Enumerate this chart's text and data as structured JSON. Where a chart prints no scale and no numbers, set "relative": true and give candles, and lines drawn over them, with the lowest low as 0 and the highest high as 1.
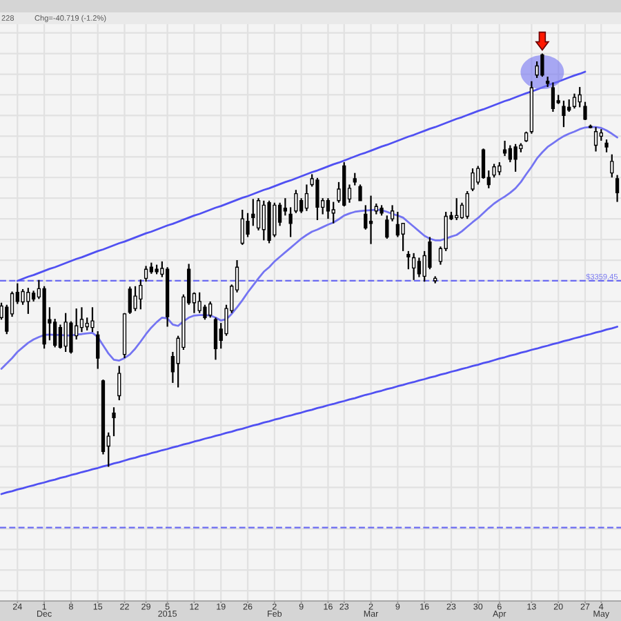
{
  "chart_data": {
    "type": "candlestick",
    "relative": true,
    "color": "#000000",
    "grid": true,
    "annotations": [
      "228",
      "Chg=-40.719 (-1.2%)",
      {
        "text": "$3359.45",
        "y": 0.45
      }
    ],
    "categories": [
      null,
      null,
      null,
      "24",
      null,
      null,
      null,
      null,
      "1\nDec",
      null,
      null,
      null,
      null,
      "8",
      null,
      null,
      null,
      null,
      "15",
      null,
      null,
      null,
      null,
      "22",
      null,
      null,
      null,
      "29",
      null,
      null,
      null,
      "5\n2015",
      null,
      null,
      null,
      null,
      "12",
      null,
      null,
      null,
      null,
      "19",
      null,
      null,
      null,
      null,
      "26",
      null,
      null,
      null,
      null,
      "2\nFeb",
      null,
      null,
      null,
      null,
      "9",
      null,
      null,
      null,
      null,
      "16",
      null,
      null,
      "23",
      null,
      null,
      null,
      null,
      "2\nMar",
      null,
      null,
      null,
      null,
      "9",
      null,
      null,
      null,
      null,
      "16",
      null,
      null,
      null,
      null,
      "23",
      null,
      null,
      null,
      null,
      "30",
      null,
      null,
      null,
      "6\nApr",
      null,
      null,
      null,
      null,
      null,
      "13",
      null,
      null,
      null,
      null,
      "20",
      null,
      null,
      null,
      null,
      "27",
      null,
      null,
      "4\nMay",
      null,
      null,
      null
    ],
    "ohlc": [
      [
        0.361,
        0.397,
        0.356,
        0.389
      ],
      [
        0.386,
        0.392,
        0.321,
        0.328
      ],
      [
        0.37,
        0.424,
        0.363,
        0.419
      ],
      [
        0.422,
        0.444,
        0.394,
        0.4
      ],
      [
        0.399,
        0.43,
        0.392,
        0.424
      ],
      [
        0.4,
        0.433,
        0.37,
        0.422
      ],
      [
        0.42,
        0.426,
        0.4,
        0.406
      ],
      [
        0.411,
        0.452,
        0.406,
        0.431
      ],
      [
        0.431,
        0.437,
        0.286,
        0.297
      ],
      [
        0.356,
        0.386,
        0.306,
        0.348
      ],
      [
        0.35,
        0.358,
        0.289,
        0.294
      ],
      [
        0.337,
        0.344,
        0.286,
        0.289
      ],
      [
        0.292,
        0.372,
        0.278,
        0.35
      ],
      [
        0.348,
        0.352,
        0.274,
        0.278
      ],
      [
        0.317,
        0.383,
        0.308,
        0.341
      ],
      [
        0.337,
        0.386,
        0.326,
        0.357
      ],
      [
        0.339,
        0.361,
        0.33,
        0.347
      ],
      [
        0.337,
        0.386,
        0.326,
        0.353
      ],
      [
        0.319,
        0.328,
        0.237,
        0.263
      ],
      [
        0.208,
        0.211,
        0.03,
        0.037
      ],
      [
        0.05,
        0.083,
        0,
        0.074
      ],
      [
        0.13,
        0.144,
        0.074,
        0.119
      ],
      [
        0.172,
        0.244,
        0.161,
        0.226
      ],
      [
        0.272,
        0.372,
        0.263,
        0.37
      ],
      [
        0.43,
        0.436,
        0.37,
        0.374
      ],
      [
        0.383,
        0.437,
        0.377,
        0.413
      ],
      [
        0.406,
        0.453,
        0.381,
        0.439
      ],
      [
        0.456,
        0.486,
        0.448,
        0.478
      ],
      [
        0.483,
        0.494,
        0.467,
        0.472
      ],
      [
        0.478,
        0.489,
        0.466,
        0.472
      ],
      [
        0.466,
        0.497,
        0.459,
        0.48
      ],
      [
        0.478,
        0.483,
        0.339,
        0.363
      ],
      [
        0.267,
        0.278,
        0.203,
        0.23
      ],
      [
        0.25,
        0.317,
        0.192,
        0.311
      ],
      [
        0.289,
        0.417,
        0.283,
        0.411
      ],
      [
        0.478,
        0.491,
        0.392,
        0.397
      ],
      [
        0.397,
        0.422,
        0.372,
        0.419
      ],
      [
        0.378,
        0.422,
        0.372,
        0.4
      ],
      [
        0.386,
        0.392,
        0.356,
        0.361
      ],
      [
        0.367,
        0.4,
        0.361,
        0.394
      ],
      [
        0.356,
        0.361,
        0.259,
        0.286
      ],
      [
        0.333,
        0.348,
        0.286,
        0.306
      ],
      [
        0.322,
        0.392,
        0.317,
        0.383
      ],
      [
        0.378,
        0.441,
        0.372,
        0.437
      ],
      [
        0.428,
        0.5,
        0.422,
        0.483
      ],
      [
        0.541,
        0.622,
        0.537,
        0.6
      ],
      [
        0.594,
        0.614,
        0.556,
        0.563
      ],
      [
        0.611,
        0.648,
        0.583,
        0.603
      ],
      [
        0.578,
        0.65,
        0.572,
        0.644
      ],
      [
        0.574,
        0.644,
        0.548,
        0.633
      ],
      [
        0.639,
        0.644,
        0.541,
        0.548
      ],
      [
        0.561,
        0.639,
        0.556,
        0.633
      ],
      [
        0.633,
        0.639,
        0.583,
        0.592
      ],
      [
        0.626,
        0.65,
        0.608,
        0.619
      ],
      [
        0.611,
        0.628,
        0.556,
        0.589
      ],
      [
        0.619,
        0.67,
        0.614,
        0.661
      ],
      [
        0.644,
        0.65,
        0.614,
        0.619
      ],
      [
        0.626,
        0.683,
        0.619,
        0.661
      ],
      [
        0.683,
        0.708,
        0.678,
        0.697
      ],
      [
        0.694,
        0.699,
        0.597,
        0.628
      ],
      [
        0.628,
        0.65,
        0.611,
        0.644
      ],
      [
        0.644,
        0.65,
        0.6,
        0.619
      ],
      [
        0.614,
        0.641,
        0.589,
        0.622
      ],
      [
        0.644,
        0.689,
        0.639,
        0.672
      ],
      [
        0.728,
        0.737,
        0.63,
        0.633
      ],
      [
        0.648,
        0.683,
        0.639,
        0.674
      ],
      [
        0.697,
        0.711,
        0.681,
        0.689
      ],
      [
        0.678,
        0.683,
        0.644,
        0.644
      ],
      [
        0.611,
        0.633,
        0.574,
        0.578
      ],
      [
        0.594,
        0.656,
        0.539,
        0.589
      ],
      [
        0.619,
        0.637,
        0.611,
        0.63
      ],
      [
        0.626,
        0.633,
        0.608,
        0.614
      ],
      [
        0.597,
        0.608,
        0.552,
        0.556
      ],
      [
        0.6,
        0.633,
        0.594,
        0.619
      ],
      [
        0.586,
        0.617,
        0.556,
        0.561
      ],
      [
        0.563,
        0.589,
        0.522,
        0.589
      ],
      [
        0.514,
        0.522,
        0.478,
        0.508
      ],
      [
        0.481,
        0.517,
        0.452,
        0.506
      ],
      [
        0.497,
        0.506,
        0.459,
        0.467
      ],
      [
        0.461,
        0.522,
        0.448,
        0.511
      ],
      [
        0.544,
        0.556,
        0.478,
        0.483
      ],
      [
        0.45,
        0.461,
        0.444,
        0.456
      ],
      [
        0.497,
        0.533,
        0.489,
        0.528
      ],
      [
        0.528,
        0.617,
        0.522,
        0.606
      ],
      [
        0.608,
        0.617,
        0.597,
        0.6
      ],
      [
        0.603,
        0.65,
        0.597,
        0.608
      ],
      [
        0.603,
        0.639,
        0.6,
        0.633
      ],
      [
        0.606,
        0.667,
        0.6,
        0.661
      ],
      [
        0.672,
        0.722,
        0.667,
        0.711
      ],
      [
        0.689,
        0.728,
        0.683,
        0.722
      ],
      [
        0.767,
        0.77,
        0.697,
        0.7
      ],
      [
        0.7,
        0.717,
        0.674,
        0.683
      ],
      [
        0.706,
        0.733,
        0.7,
        0.726
      ],
      [
        0.714,
        0.737,
        0.706,
        0.728
      ],
      [
        0.767,
        0.789,
        0.752,
        0.759
      ],
      [
        0.77,
        0.778,
        0.737,
        0.744
      ],
      [
        0.774,
        0.781,
        0.714,
        0.744
      ],
      [
        0.77,
        0.783,
        0.761,
        0.778
      ],
      [
        0.789,
        0.811,
        0.786,
        0.808
      ],
      [
        0.811,
        0.933,
        0.806,
        0.917
      ],
      [
        0.948,
        0.981,
        0.941,
        0.97
      ],
      [
        0.997,
        1,
        0.944,
        0.948
      ],
      [
        0.933,
        0.944,
        0.919,
        0.928
      ],
      [
        0.917,
        0.93,
        0.859,
        0.867
      ],
      [
        0.886,
        0.9,
        0.878,
        0.881
      ],
      [
        0.872,
        0.886,
        0.822,
        0.85
      ],
      [
        0.87,
        0.889,
        0.859,
        0.863
      ],
      [
        0.872,
        0.903,
        0.867,
        0.894
      ],
      [
        0.883,
        0.919,
        0.87,
        0.9
      ],
      [
        0.872,
        0.883,
        0.839,
        0.841
      ],
      [
        0.824,
        0.828,
        0.819,
        0.821
      ],
      [
        0.778,
        0.822,
        0.763,
        0.811
      ],
      [
        0.8,
        0.817,
        0.789,
        0.808
      ],
      [
        0.783,
        0.792,
        0.761,
        0.774
      ],
      [
        0.711,
        0.756,
        0.7,
        0.739
      ],
      [
        0.697,
        0.706,
        0.641,
        0.663
      ]
    ],
    "series": [
      {
        "type": "line",
        "color": "#7474f2",
        "values": [
          0.237,
          0.25,
          0.263,
          0.278,
          0.289,
          0.3,
          0.308,
          0.314,
          0.319,
          0.32,
          0.319,
          0.319,
          0.318,
          0.318,
          0.32,
          0.321,
          0.323,
          0.324,
          0.314,
          0.294,
          0.274,
          0.259,
          0.257,
          0.263,
          0.272,
          0.286,
          0.303,
          0.321,
          0.337,
          0.35,
          0.361,
          0.359,
          0.344,
          0.341,
          0.352,
          0.361,
          0.366,
          0.367,
          0.367,
          0.366,
          0.361,
          0.354,
          0.357,
          0.37,
          0.386,
          0.403,
          0.422,
          0.439,
          0.456,
          0.472,
          0.483,
          0.497,
          0.508,
          0.519,
          0.53,
          0.541,
          0.552,
          0.561,
          0.569,
          0.574,
          0.58,
          0.586,
          0.591,
          0.599,
          0.608,
          0.613,
          0.617,
          0.619,
          0.62,
          0.621,
          0.622,
          0.621,
          0.617,
          0.612,
          0.608,
          0.603,
          0.592,
          0.581,
          0.57,
          0.559,
          0.552,
          0.548,
          0.548,
          0.552,
          0.557,
          0.561,
          0.57,
          0.581,
          0.592,
          0.602,
          0.614,
          0.626,
          0.637,
          0.646,
          0.654,
          0.663,
          0.674,
          0.689,
          0.708,
          0.726,
          0.746,
          0.761,
          0.774,
          0.783,
          0.792,
          0.8,
          0.806,
          0.811,
          0.817,
          0.821,
          0.822,
          0.822,
          0.82,
          0.814,
          0.806,
          0.797
        ]
      },
      {
        "type": "line",
        "color": "#5050f2",
        "values": [
          null,
          null,
          null,
          0.45,
          0.455,
          0.46,
          0.464,
          0.469,
          0.474,
          0.479,
          0.483,
          0.488,
          0.493,
          0.498,
          0.503,
          0.507,
          0.512,
          0.517,
          0.522,
          0.526,
          0.531,
          0.536,
          0.541,
          0.545,
          0.55,
          0.555,
          0.56,
          0.565,
          0.569,
          0.574,
          0.579,
          0.584,
          0.588,
          0.593,
          0.598,
          0.603,
          0.608,
          0.612,
          0.617,
          0.622,
          0.627,
          0.631,
          0.636,
          0.641,
          0.646,
          0.651,
          0.655,
          0.66,
          0.665,
          0.67,
          0.674,
          0.679,
          0.684,
          0.689,
          0.693,
          0.698,
          0.703,
          0.708,
          0.713,
          0.717,
          0.722,
          0.727,
          0.732,
          0.736,
          0.741,
          0.746,
          0.751,
          0.756,
          0.76,
          0.765,
          0.77,
          0.775,
          0.779,
          0.784,
          0.789,
          0.794,
          0.799,
          0.803,
          0.808,
          0.813,
          0.818,
          0.822,
          0.827,
          0.832,
          0.837,
          0.842,
          0.846,
          0.851,
          0.856,
          0.861,
          0.865,
          0.87,
          0.875,
          0.88,
          0.885,
          0.889,
          0.894,
          0.899,
          0.904,
          0.908,
          0.913,
          0.918,
          0.923,
          0.928,
          0.932,
          0.937,
          0.942,
          0.947,
          0.951,
          0.956,
          null,
          null,
          null,
          null,
          null,
          null
        ]
      },
      {
        "type": "line",
        "color": "#5050f2",
        "values": [
          -0.066,
          -0.062,
          -0.059,
          -0.055,
          -0.052,
          -0.048,
          -0.045,
          -0.041,
          -0.038,
          -0.034,
          -0.031,
          -0.027,
          -0.024,
          -0.02,
          -0.017,
          -0.013,
          -0.01,
          -0.006,
          -0.003,
          0.001,
          0.004,
          0.008,
          0.011,
          0.015,
          0.019,
          0.022,
          0.026,
          0.029,
          0.033,
          0.036,
          0.04,
          0.043,
          0.047,
          0.05,
          0.054,
          0.057,
          0.061,
          0.064,
          0.068,
          0.071,
          0.075,
          0.078,
          0.082,
          0.085,
          0.089,
          0.092,
          0.096,
          0.1,
          0.103,
          0.107,
          0.11,
          0.114,
          0.117,
          0.121,
          0.124,
          0.128,
          0.131,
          0.135,
          0.138,
          0.142,
          0.145,
          0.149,
          0.152,
          0.156,
          0.159,
          0.163,
          0.166,
          0.17,
          0.174,
          0.177,
          0.181,
          0.184,
          0.188,
          0.191,
          0.195,
          0.198,
          0.202,
          0.205,
          0.209,
          0.212,
          0.216,
          0.219,
          0.223,
          0.226,
          0.23,
          0.233,
          0.237,
          0.24,
          0.244,
          0.247,
          0.251,
          0.254,
          0.258,
          0.262,
          0.265,
          0.269,
          0.272,
          0.276,
          0.279,
          0.283,
          0.286,
          0.29,
          0.293,
          0.297,
          0.3,
          0.304,
          0.307,
          0.311,
          0.314,
          0.318,
          0.321,
          0.325,
          0.328,
          0.332,
          0.335,
          0.339
        ]
      }
    ],
    "ref_lines": [
      {
        "axis": "y",
        "value": 0.45,
        "color": "#6a6af2",
        "line_style": "dashed"
      },
      {
        "axis": "y",
        "value": -0.147,
        "color": "#6a6af2",
        "line_style": "dashed"
      }
    ]
  }
}
